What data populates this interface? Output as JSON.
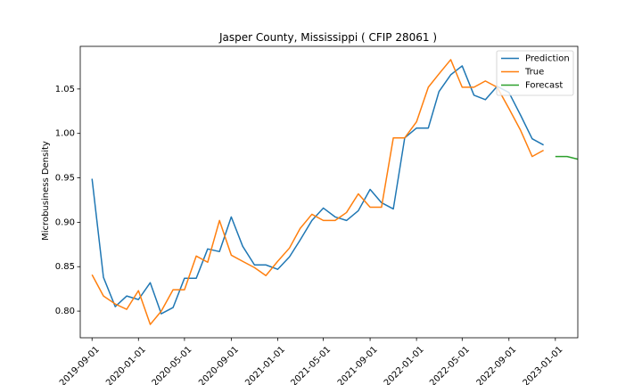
{
  "chart_data": {
    "type": "line",
    "title": "Jasper County, Mississippi ( CFIP 28061 )",
    "xlabel": "",
    "ylabel": "Microbusiness Density",
    "xlim": [
      "2019-08-01",
      "2023-03-01"
    ],
    "ylim": [
      0.77,
      1.098
    ],
    "xticks": [
      "2019-09-01",
      "2020-01-01",
      "2020-05-01",
      "2020-09-01",
      "2021-01-01",
      "2021-05-01",
      "2021-09-01",
      "2022-01-01",
      "2022-05-01",
      "2022-09-01",
      "2023-01-01"
    ],
    "yticks": [
      0.8,
      0.85,
      0.9,
      0.95,
      1.0,
      1.05
    ],
    "ytick_labels": [
      "0.80",
      "0.85",
      "0.90",
      "0.95",
      "1.00",
      "1.05"
    ],
    "grid": false,
    "legend_position": "upper right",
    "series": [
      {
        "name": "Prediction",
        "color": "#1f77b4",
        "x": [
          "2019-09-01",
          "2019-10-01",
          "2019-11-01",
          "2019-12-01",
          "2020-01-01",
          "2020-02-01",
          "2020-03-01",
          "2020-04-01",
          "2020-05-01",
          "2020-06-01",
          "2020-07-01",
          "2020-08-01",
          "2020-09-01",
          "2020-10-01",
          "2020-11-01",
          "2020-12-01",
          "2021-01-01",
          "2021-02-01",
          "2021-03-01",
          "2021-04-01",
          "2021-05-01",
          "2021-06-01",
          "2021-07-01",
          "2021-08-01",
          "2021-09-01",
          "2021-10-01",
          "2021-11-01",
          "2021-12-01",
          "2022-01-01",
          "2022-02-01",
          "2022-03-01",
          "2022-04-01",
          "2022-05-01",
          "2022-06-01",
          "2022-07-01",
          "2022-08-01",
          "2022-09-01",
          "2022-10-01",
          "2022-11-01",
          "2022-12-01"
        ],
        "y": [
          0.949,
          0.838,
          0.805,
          0.817,
          0.813,
          0.832,
          0.797,
          0.804,
          0.837,
          0.837,
          0.87,
          0.867,
          0.906,
          0.873,
          0.852,
          0.852,
          0.847,
          0.861,
          0.88,
          0.902,
          0.916,
          0.906,
          0.902,
          0.913,
          0.937,
          0.922,
          0.915,
          0.995,
          1.006,
          1.006,
          1.047,
          1.066,
          1.076,
          1.043,
          1.038,
          1.053,
          1.046,
          1.021,
          0.994,
          0.987
        ]
      },
      {
        "name": "True",
        "color": "#ff7f0e",
        "x": [
          "2019-09-01",
          "2019-10-01",
          "2019-11-01",
          "2019-12-01",
          "2020-01-01",
          "2020-02-01",
          "2020-03-01",
          "2020-04-01",
          "2020-05-01",
          "2020-06-01",
          "2020-07-01",
          "2020-08-01",
          "2020-09-01",
          "2020-10-01",
          "2020-11-01",
          "2020-12-01",
          "2021-01-01",
          "2021-02-01",
          "2021-03-01",
          "2021-04-01",
          "2021-05-01",
          "2021-06-01",
          "2021-07-01",
          "2021-08-01",
          "2021-09-01",
          "2021-10-01",
          "2021-11-01",
          "2021-12-01",
          "2022-01-01",
          "2022-02-01",
          "2022-03-01",
          "2022-04-01",
          "2022-05-01",
          "2022-06-01",
          "2022-07-01",
          "2022-08-01",
          "2022-09-01",
          "2022-10-01",
          "2022-11-01",
          "2022-12-01"
        ],
        "y": [
          0.841,
          0.817,
          0.808,
          0.802,
          0.823,
          0.785,
          0.8,
          0.824,
          0.824,
          0.862,
          0.855,
          0.902,
          0.863,
          0.856,
          0.849,
          0.84,
          0.856,
          0.871,
          0.893,
          0.909,
          0.902,
          0.902,
          0.911,
          0.932,
          0.917,
          0.917,
          0.995,
          0.995,
          1.013,
          1.052,
          1.067,
          1.083,
          1.052,
          1.052,
          1.059,
          1.052,
          1.028,
          1.004,
          0.974,
          0.981
        ]
      },
      {
        "name": "Forecast",
        "color": "#2ca02c",
        "x": [
          "2023-01-01",
          "2023-02-01",
          "2023-03-01"
        ],
        "y": [
          0.974,
          0.974,
          0.971
        ]
      }
    ]
  }
}
